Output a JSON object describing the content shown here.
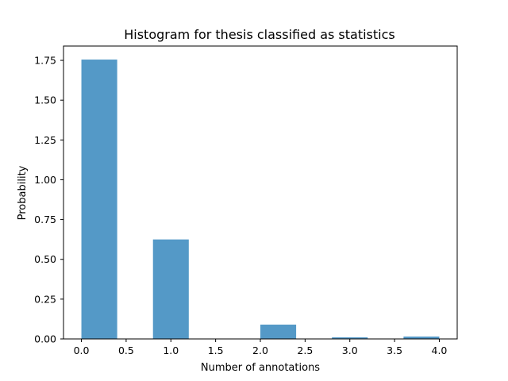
{
  "chart_data": {
    "type": "bar",
    "title": "Histogram for thesis classified as statistics",
    "xlabel": "Number of annotations",
    "ylabel": "Probability",
    "bins": [
      {
        "start": 0.0,
        "end": 0.4,
        "value": 1.755
      },
      {
        "start": 0.4,
        "end": 0.8,
        "value": 0.0
      },
      {
        "start": 0.8,
        "end": 1.2,
        "value": 0.625
      },
      {
        "start": 1.2,
        "end": 1.6,
        "value": 0.0
      },
      {
        "start": 1.6,
        "end": 2.0,
        "value": 0.0
      },
      {
        "start": 2.0,
        "end": 2.4,
        "value": 0.09
      },
      {
        "start": 2.4,
        "end": 2.8,
        "value": 0.0
      },
      {
        "start": 2.8,
        "end": 3.2,
        "value": 0.01
      },
      {
        "start": 3.2,
        "end": 3.6,
        "value": 0.0
      },
      {
        "start": 3.6,
        "end": 4.0,
        "value": 0.015
      }
    ],
    "xlim": [
      -0.2,
      4.2
    ],
    "ylim": [
      0,
      1.84
    ],
    "xticks": [
      "0.0",
      "0.5",
      "1.0",
      "1.5",
      "2.0",
      "2.5",
      "3.0",
      "3.5",
      "4.0"
    ],
    "yticks": [
      "0.00",
      "0.25",
      "0.50",
      "0.75",
      "1.00",
      "1.25",
      "1.50",
      "1.75"
    ],
    "bar_color": "#5499c7",
    "grid": false,
    "legend": "none"
  }
}
